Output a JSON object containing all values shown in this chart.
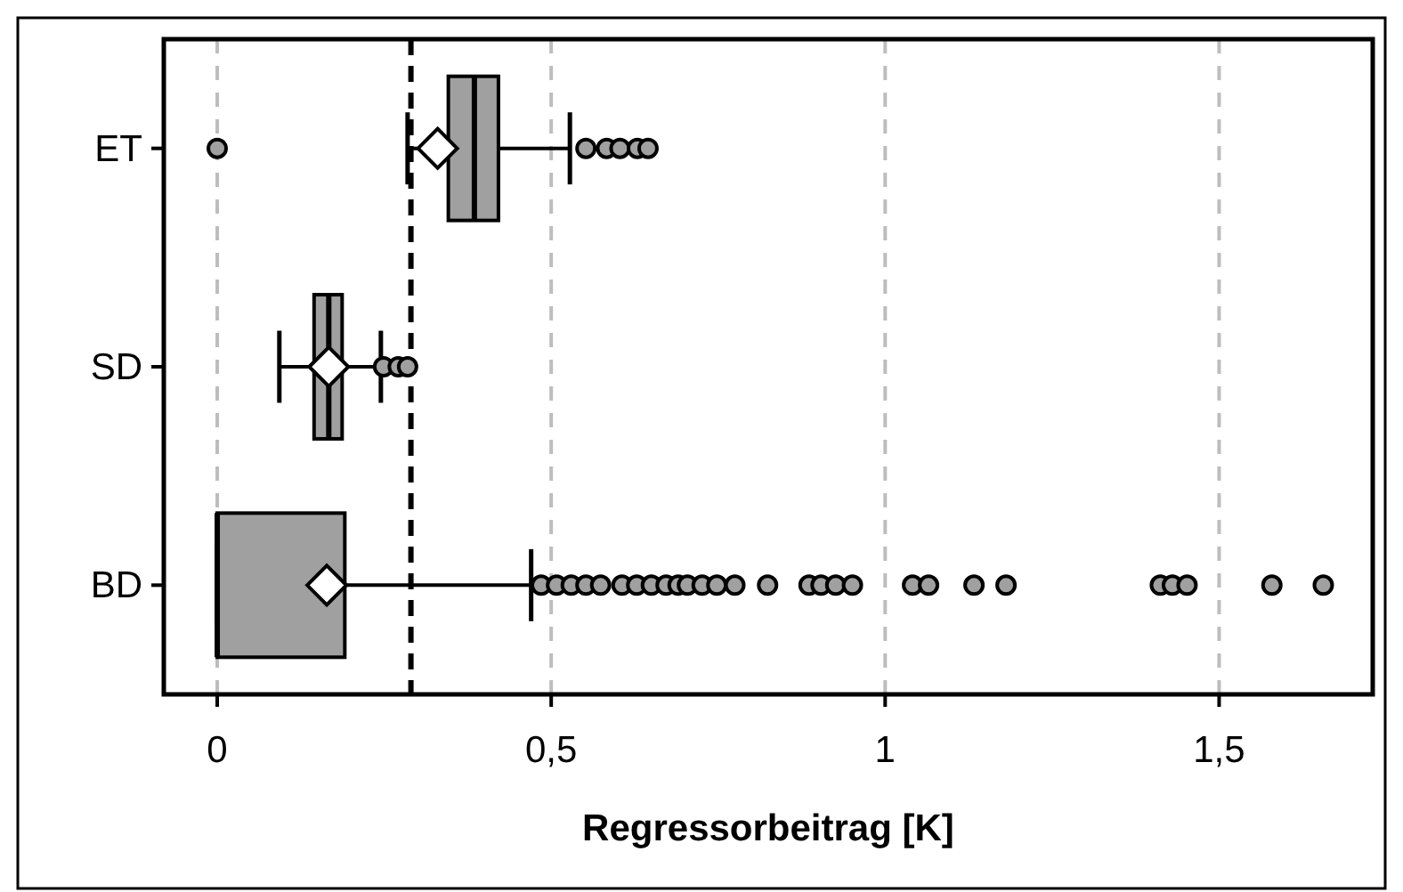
{
  "chart_data": {
    "type": "box",
    "orientation": "horizontal",
    "xlabel": "Regressorbeitrag [K]",
    "categories": [
      "ET",
      "SD",
      "BD"
    ],
    "xlim": [
      -0.08,
      1.73
    ],
    "xticks": [
      0,
      {
        "value": 0.5,
        "label": "0,5"
      },
      1,
      {
        "value": 1.5,
        "label": "1,5"
      }
    ],
    "grid": "x",
    "color": "#a0a0a0",
    "boxes": [
      {
        "low": 0.285,
        "q1": 0.346,
        "median": 0.385,
        "q3": 0.421,
        "high": 0.528,
        "mean": 0.33,
        "outliers": [
          0,
          0.552,
          0.583,
          0.603,
          0.629,
          0.645
        ]
      },
      {
        "low": 0.093,
        "q1": 0.145,
        "median": 0.167,
        "q3": 0.187,
        "high": 0.245,
        "mean": 0.167,
        "outliers": [
          0.249,
          0.271,
          0.285
        ]
      },
      {
        "low": 0,
        "q1": 0,
        "median": 0,
        "q3": 0.191,
        "high": 0.47,
        "mean": 0.164,
        "outliers": [
          0.485,
          0.508,
          0.53,
          0.552,
          0.574,
          0.606,
          0.628,
          0.65,
          0.672,
          0.69,
          0.704,
          0.726,
          0.748,
          0.775,
          0.824,
          0.886,
          0.904,
          0.926,
          0.951,
          1.041,
          1.065,
          1.133,
          1.181,
          1.412,
          1.43,
          1.452,
          1.579,
          1.656
        ]
      }
    ],
    "ref_lines": [
      {
        "axis": "x",
        "value": 0.29,
        "line_style": "dashed",
        "color": "#000000"
      }
    ]
  }
}
